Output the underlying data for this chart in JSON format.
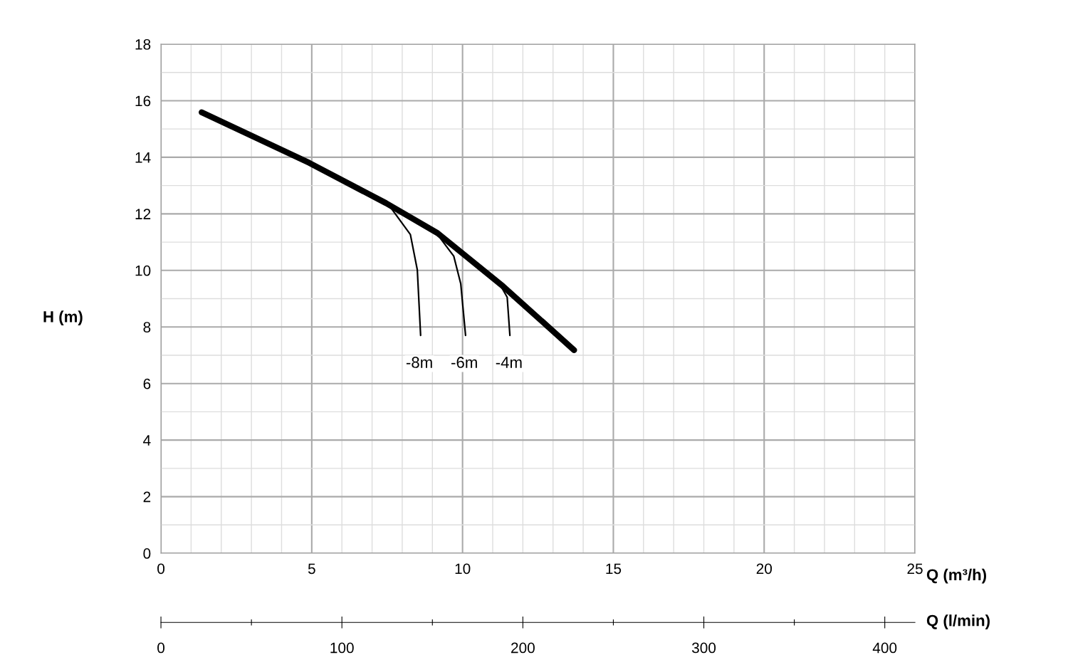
{
  "chart_data": {
    "type": "line",
    "xlabel": "Q (m³/h)",
    "ylabel": "H (m)",
    "x2label": "Q (l/min)",
    "xlim": [
      0,
      25
    ],
    "xticks": [
      0,
      {
        "value": 1,
        "label": null
      },
      {
        "value": 2,
        "label": null
      },
      {
        "value": 3,
        "label": null
      },
      {
        "value": 4,
        "label": null
      },
      5,
      {
        "value": 6,
        "label": null
      },
      {
        "value": 7,
        "label": null
      },
      {
        "value": 8,
        "label": null
      },
      {
        "value": 9,
        "label": null
      },
      10,
      {
        "value": 11,
        "label": null
      },
      {
        "value": 12,
        "label": null
      },
      {
        "value": 13,
        "label": null
      },
      {
        "value": 14,
        "label": null
      },
      15,
      {
        "value": 16,
        "label": null
      },
      {
        "value": 17,
        "label": null
      },
      {
        "value": 18,
        "label": null
      },
      {
        "value": 19,
        "label": null
      },
      20,
      {
        "value": 21,
        "label": null
      },
      {
        "value": 22,
        "label": null
      },
      {
        "value": 23,
        "label": null
      },
      {
        "value": 24,
        "label": null
      },
      25
    ],
    "ylim": [
      0,
      18
    ],
    "yticks": [
      0,
      {
        "value": 1,
        "label": null
      },
      2,
      {
        "value": 3,
        "label": null
      },
      4,
      {
        "value": 5,
        "label": null
      },
      6,
      {
        "value": 7,
        "label": null
      },
      8,
      {
        "value": 9,
        "label": null
      },
      10,
      {
        "value": 11,
        "label": null
      },
      12,
      {
        "value": 13,
        "label": null
      },
      14,
      {
        "value": 15,
        "label": null
      },
      16,
      {
        "value": 17,
        "label": null
      },
      18
    ],
    "x2lim": [
      0,
      416.67
    ],
    "x2ticks": [
      0,
      {
        "value": 50,
        "label": null
      },
      100,
      {
        "value": 150,
        "label": null
      },
      200,
      {
        "value": 250,
        "label": null
      },
      300,
      {
        "value": 350,
        "label": null
      },
      400
    ],
    "grid": true,
    "marker": "none",
    "line_style": "solid",
    "series": [
      {
        "color": "#000000",
        "x": [
          1.35,
          4.92,
          7.46,
          9.17,
          11.34,
          13.7
        ],
        "values": [
          15.59,
          13.8,
          12.38,
          11.32,
          9.44,
          7.18
        ]
      },
      {
        "color": "#000000",
        "x": [
          7.64,
          8.27,
          8.5,
          8.61
        ],
        "values": [
          12.19,
          11.27,
          10.02,
          7.7
        ]
      },
      {
        "color": "#000000",
        "x": [
          9.17,
          9.71,
          9.94,
          10.1
        ],
        "values": [
          11.27,
          10.5,
          9.53,
          7.7
        ]
      },
      {
        "color": "#000000",
        "x": [
          11.3,
          11.48,
          11.57
        ],
        "values": [
          9.39,
          9.05,
          7.7
        ]
      }
    ],
    "annotations": [
      {
        "text": "-8m",
        "x": 8.57,
        "y": 6.7
      },
      {
        "text": "-6m",
        "x": 10.06,
        "y": 6.7
      },
      {
        "text": "-4m",
        "x": 11.54,
        "y": 6.7
      }
    ]
  }
}
